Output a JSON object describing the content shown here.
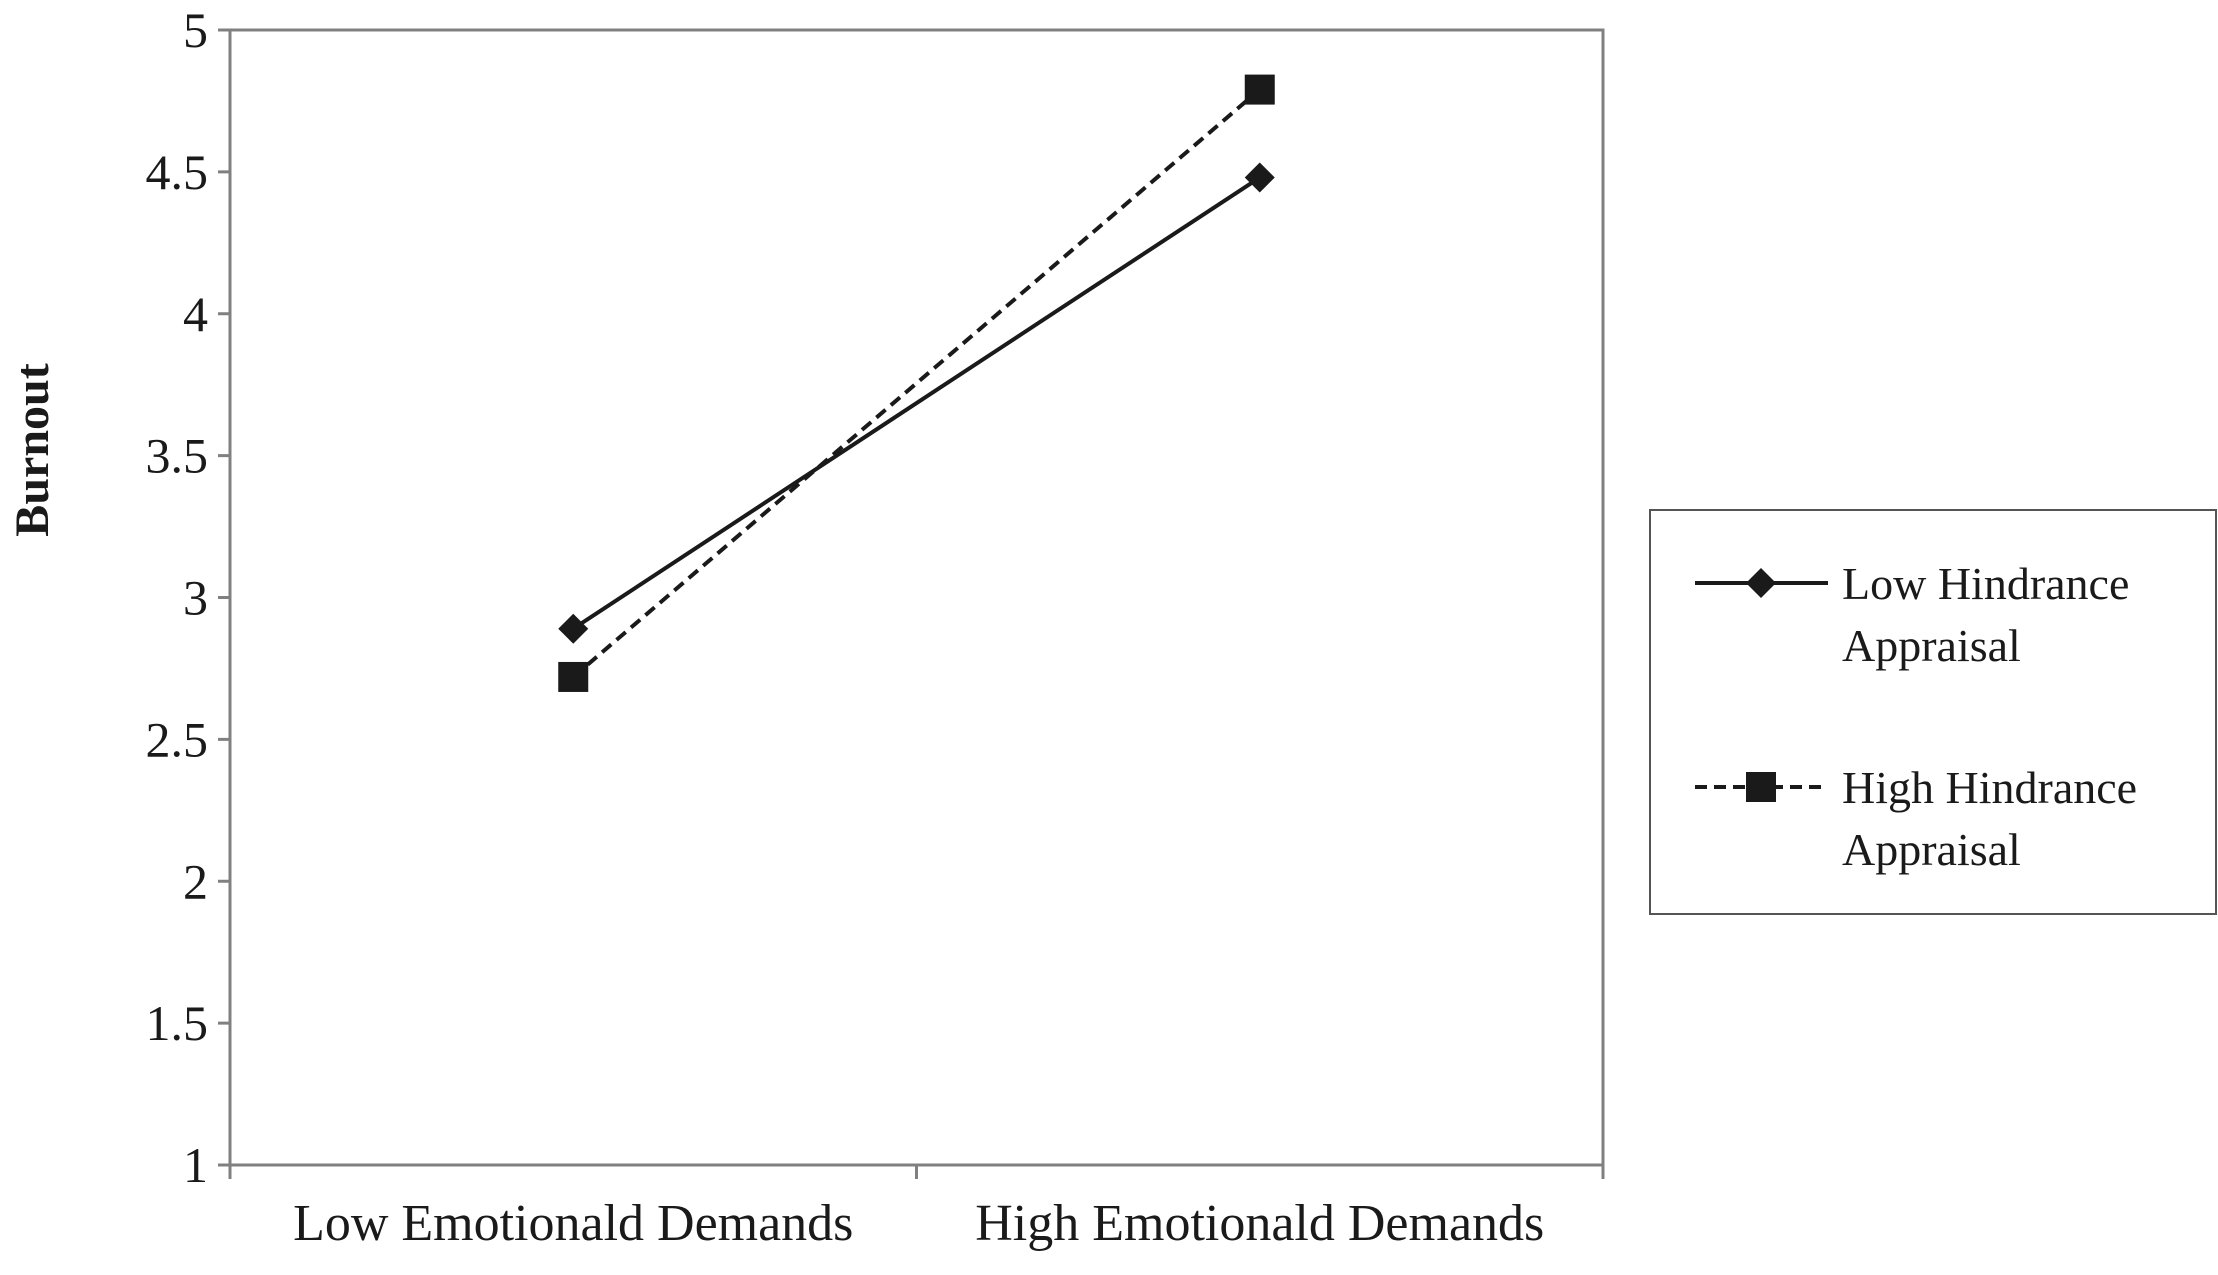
{
  "chart_data": {
    "type": "line",
    "title": "",
    "xlabel": "",
    "ylabel": "Burnout",
    "categories": [
      "Low Emotionald Demands",
      "High Emotionald Demands"
    ],
    "ylim": [
      1,
      5
    ],
    "yticks": [
      "1",
      "1.5",
      "2",
      "2.5",
      "3",
      "3.5",
      "4",
      "4.5",
      "5"
    ],
    "grid": false,
    "legend_position": "right",
    "series": [
      {
        "name": "Low Hindrance Appraisal",
        "legend_lines": [
          "Low Hindrance",
          "Appraisal"
        ],
        "values": [
          2.89,
          4.48
        ],
        "line_style": "solid",
        "marker": "diamond",
        "color": "#1a1a1a"
      },
      {
        "name": "High Hindrance Appraisal",
        "legend_lines": [
          "High Hindrance",
          "Appraisal"
        ],
        "values": [
          2.72,
          4.79
        ],
        "line_style": "dashed",
        "marker": "square",
        "color": "#1a1a1a"
      }
    ]
  }
}
